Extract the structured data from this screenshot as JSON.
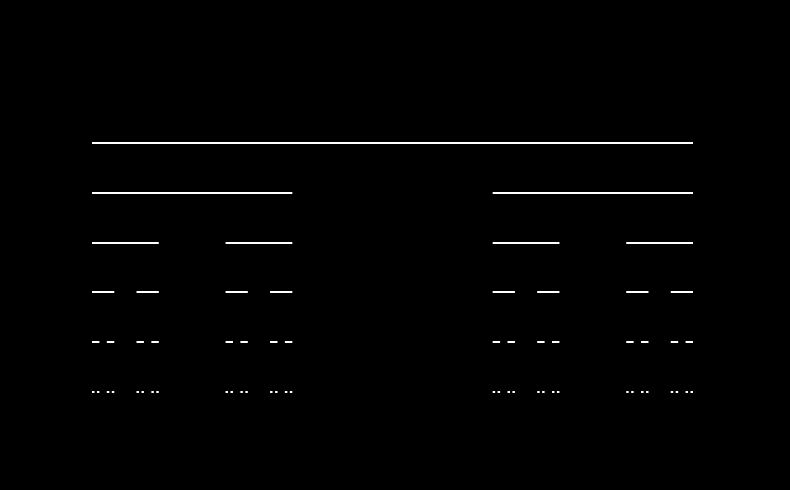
{
  "figure": {
    "type": "cantor-set",
    "levels": 6,
    "interval": [
      0,
      1
    ],
    "removed_fraction": "middle third",
    "colors": {
      "background": "#000000",
      "segment": "#ffffff"
    }
  }
}
